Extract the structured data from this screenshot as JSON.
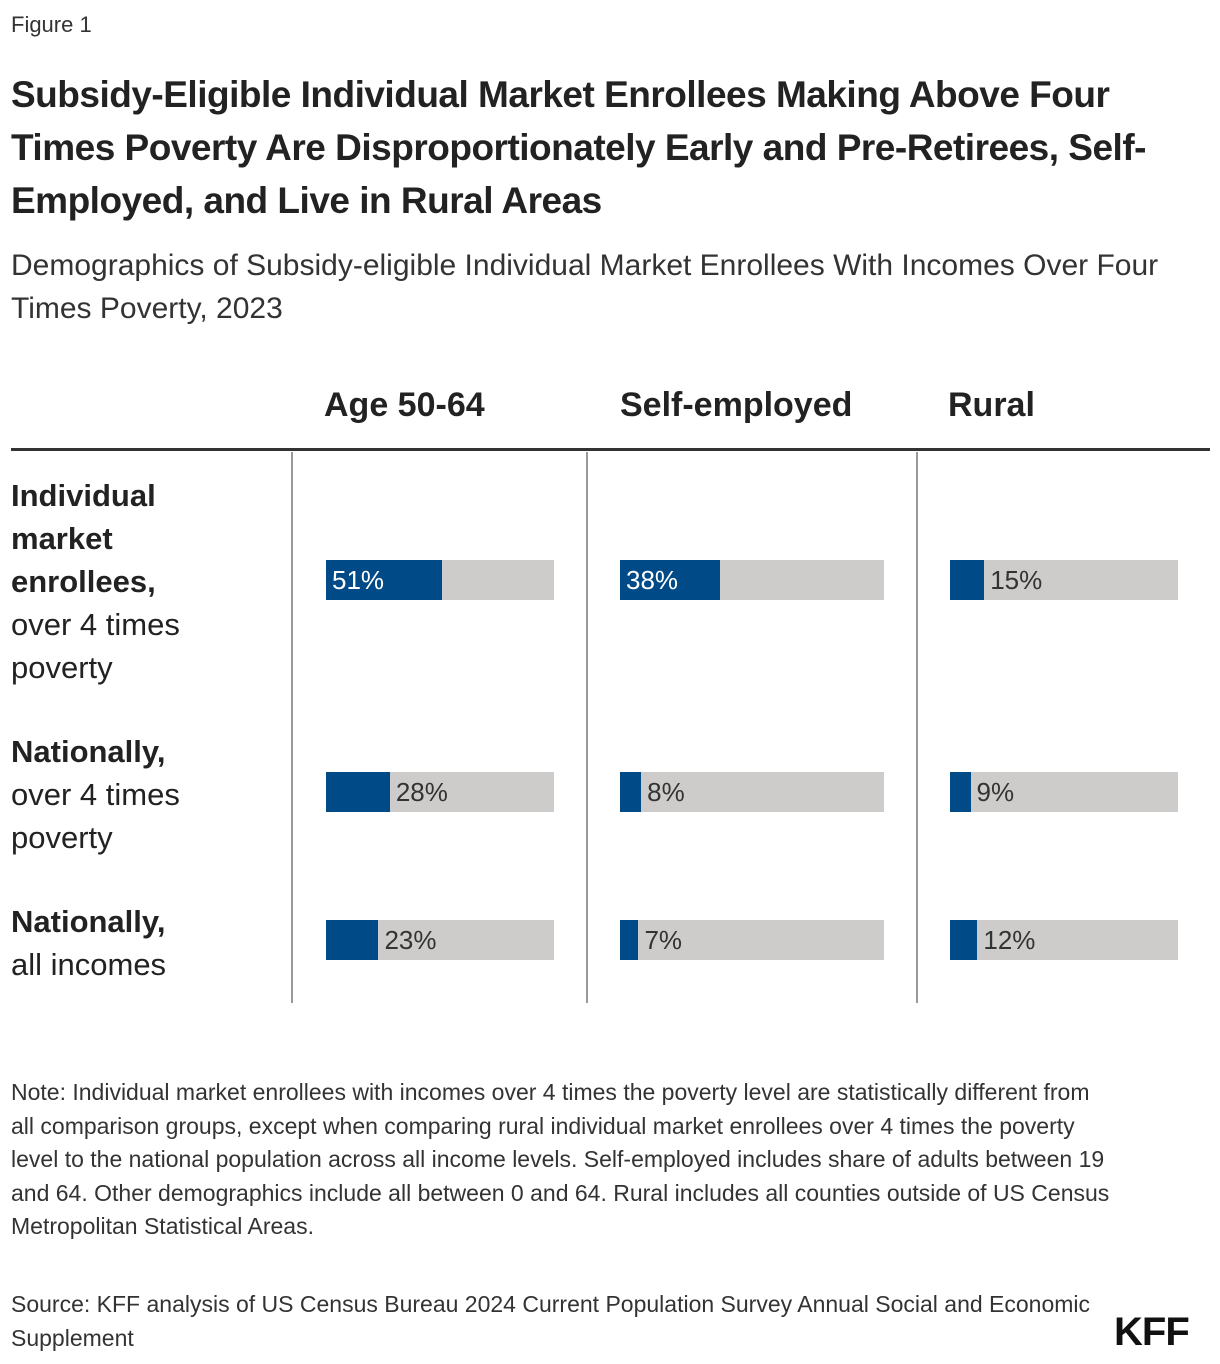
{
  "figure_label": "Figure 1",
  "title": "Subsidy-Eligible Individual Market Enrollees Making Above Four Times Poverty Are Disproportionately Early and Pre-Retirees, Self-Employed, and Live in Rural Areas",
  "subtitle": "Demographics of Subsidy-eligible Individual Market Enrollees With Incomes Over Four Times Poverty, 2023",
  "chart_data": {
    "type": "bar",
    "orientation": "horizontal",
    "value_range": [
      0,
      100
    ],
    "unit": "%",
    "columns": [
      "Age 50-64",
      "Self-employed",
      "Rural"
    ],
    "rows": [
      {
        "label_bold": "Individual market enrollees,",
        "label_regular": "over 4 times poverty",
        "values": [
          51,
          38,
          15
        ]
      },
      {
        "label_bold": "Nationally,",
        "label_regular": "over 4 times poverty",
        "values": [
          28,
          8,
          9
        ]
      },
      {
        "label_bold": "Nationally,",
        "label_regular": "all incomes",
        "values": [
          23,
          7,
          12
        ]
      }
    ],
    "colors": {
      "fill": "#004a87",
      "track": "#cdcccb"
    }
  },
  "note": "Note: Individual market enrollees with incomes over 4 times the poverty level are statistically different from all comparison groups, except when comparing rural individual market enrollees over 4 times the poverty level to the national population across all income levels. Self-employed includes share of adults between 19 and 64. Other demographics include all between 0 and 64. Rural includes all counties outside of US Census Metropolitan Statistical Areas.",
  "source": "Source: KFF analysis of US Census Bureau 2024 Current Population Survey Annual Social and Economic Supplement",
  "logo": "KFF"
}
